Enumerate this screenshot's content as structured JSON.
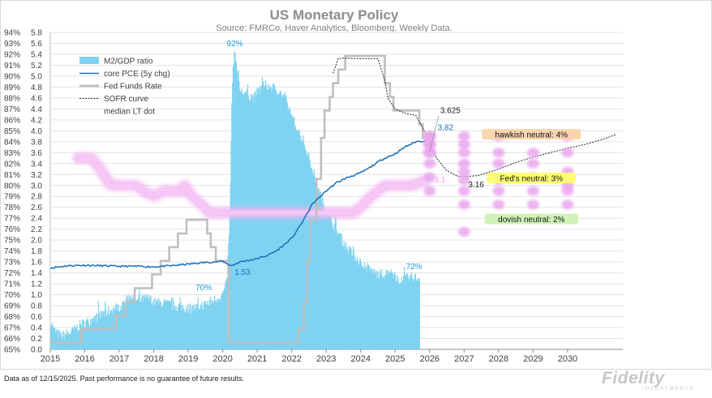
{
  "chart_data": {
    "type": "area",
    "title": "US Monetary Policy",
    "subtitle": "Source: FMRCo, Haver Analytics, Bloomberg. Weekly Data.",
    "left_axis": {
      "ticks": [
        "94%",
        "93%",
        "92%",
        "91%",
        "90%",
        "89%",
        "88%",
        "87%",
        "86%",
        "85%",
        "84%",
        "83%",
        "82%",
        "81%",
        "80%",
        "79%",
        "78%",
        "77%",
        "76%",
        "75%",
        "74%",
        "73%",
        "72%",
        "71%",
        "70%",
        "69%",
        "68%",
        "67%",
        "66%",
        "65%"
      ],
      "range": [
        65,
        94
      ],
      "unit": "%"
    },
    "right_axis": {
      "ticks": [
        "5.8",
        "5.6",
        "5.4",
        "5.2",
        "5.0",
        "4.8",
        "4.6",
        "4.4",
        "4.2",
        "4.0",
        "3.8",
        "3.6",
        "3.4",
        "3.2",
        "3.0",
        "2.8",
        "2.6",
        "2.4",
        "2.2",
        "2.0",
        "1.8",
        "1.6",
        "1.4",
        "1.2",
        "1.0",
        "0.8",
        "0.6",
        "0.4",
        "0.2",
        "0.0"
      ],
      "range": [
        0,
        5.8
      ]
    },
    "x_axis": {
      "ticks": [
        "2015",
        "2016",
        "2017",
        "2018",
        "2019",
        "2020",
        "2021",
        "2022",
        "2023",
        "2024",
        "2025",
        "2026",
        "2027",
        "2028",
        "2029",
        "2030"
      ],
      "range": [
        2015,
        2031.6
      ]
    },
    "legend": {
      "position": "top-left",
      "items": [
        {
          "label": "M2/GDP ratio",
          "color": "#7fd3f0",
          "style": "area"
        },
        {
          "label": "core PCE (5y chg)",
          "color": "#1a6fb8",
          "style": "line"
        },
        {
          "label": "Fed Funds Rate",
          "color": "#bfbfbf",
          "style": "thick-line"
        },
        {
          "label": "SOFR curve",
          "color": "#222222",
          "style": "dotted"
        },
        {
          "label": "median LT dot",
          "color": "#f2b6f2",
          "style": "glow"
        }
      ]
    },
    "series": [
      {
        "name": "M2/GDP ratio",
        "axis": "left",
        "points": [
          [
            2015.0,
            67.6
          ],
          [
            2015.1,
            66.7
          ],
          [
            2015.3,
            66.2
          ],
          [
            2015.6,
            66.6
          ],
          [
            2015.9,
            67.3
          ],
          [
            2016.2,
            67.7
          ],
          [
            2016.5,
            68.2
          ],
          [
            2016.8,
            68.7
          ],
          [
            2017.0,
            68.9
          ],
          [
            2017.2,
            69.6
          ],
          [
            2017.3,
            70.0
          ],
          [
            2017.5,
            69.4
          ],
          [
            2017.8,
            69.7
          ],
          [
            2018.0,
            69.3
          ],
          [
            2018.3,
            69.2
          ],
          [
            2018.6,
            69.0
          ],
          [
            2018.9,
            68.8
          ],
          [
            2019.2,
            68.8
          ],
          [
            2019.5,
            69.1
          ],
          [
            2019.8,
            69.6
          ],
          [
            2020.0,
            70.1
          ],
          [
            2020.1,
            71.0
          ],
          [
            2020.2,
            77.5
          ],
          [
            2020.25,
            88.0
          ],
          [
            2020.3,
            91.5
          ],
          [
            2020.35,
            92.0
          ],
          [
            2020.4,
            90.8
          ],
          [
            2020.5,
            88.6
          ],
          [
            2020.7,
            88.4
          ],
          [
            2020.9,
            88.0
          ],
          [
            2021.0,
            88.6
          ],
          [
            2021.2,
            89.2
          ],
          [
            2021.4,
            89.0
          ],
          [
            2021.6,
            88.7
          ],
          [
            2021.8,
            87.9
          ],
          [
            2022.0,
            86.3
          ],
          [
            2022.2,
            84.9
          ],
          [
            2022.4,
            83.4
          ],
          [
            2022.6,
            81.4
          ],
          [
            2022.8,
            79.3
          ],
          [
            2023.0,
            77.6
          ],
          [
            2023.2,
            76.4
          ],
          [
            2023.4,
            75.3
          ],
          [
            2023.6,
            74.2
          ],
          [
            2023.8,
            73.6
          ],
          [
            2024.0,
            72.9
          ],
          [
            2024.2,
            72.4
          ],
          [
            2024.5,
            71.8
          ],
          [
            2024.8,
            72.0
          ],
          [
            2025.0,
            71.6
          ],
          [
            2025.2,
            71.4
          ],
          [
            2025.5,
            71.6
          ],
          [
            2025.7,
            71.5
          ]
        ],
        "labels": [
          {
            "text": "92%",
            "at": [
              2020.35,
              92.0
            ]
          },
          {
            "text": "70%",
            "at": [
              2019.8,
              70.1
            ]
          },
          {
            "text": "72%",
            "at": [
              2025.5,
              71.6
            ]
          }
        ]
      },
      {
        "name": "core PCE (5y chg)",
        "axis": "right",
        "points": [
          [
            2015.0,
            1.49
          ],
          [
            2015.5,
            1.53
          ],
          [
            2016.0,
            1.54
          ],
          [
            2016.5,
            1.53
          ],
          [
            2017.0,
            1.52
          ],
          [
            2017.5,
            1.52
          ],
          [
            2018.0,
            1.51
          ],
          [
            2018.5,
            1.53
          ],
          [
            2019.0,
            1.56
          ],
          [
            2019.5,
            1.59
          ],
          [
            2020.0,
            1.61
          ],
          [
            2020.25,
            1.53
          ],
          [
            2020.5,
            1.6
          ],
          [
            2021.0,
            1.66
          ],
          [
            2021.3,
            1.72
          ],
          [
            2021.6,
            1.82
          ],
          [
            2022.0,
            2.03
          ],
          [
            2022.3,
            2.32
          ],
          [
            2022.6,
            2.66
          ],
          [
            2023.0,
            2.9
          ],
          [
            2023.3,
            3.05
          ],
          [
            2023.6,
            3.14
          ],
          [
            2024.0,
            3.23
          ],
          [
            2024.3,
            3.34
          ],
          [
            2024.6,
            3.47
          ],
          [
            2025.0,
            3.58
          ],
          [
            2025.3,
            3.71
          ],
          [
            2025.6,
            3.8
          ],
          [
            2025.9,
            3.82
          ]
        ],
        "labels": [
          {
            "text": "1.53",
            "at": [
              2020.25,
              1.53
            ]
          },
          {
            "text": "3.82",
            "at": [
              2025.9,
              3.82
            ]
          }
        ]
      },
      {
        "name": "Fed Funds Rate",
        "axis": "right",
        "points": [
          [
            2015.0,
            0.12
          ],
          [
            2015.9,
            0.12
          ],
          [
            2015.9,
            0.37
          ],
          [
            2016.9,
            0.37
          ],
          [
            2016.9,
            0.62
          ],
          [
            2017.2,
            0.62
          ],
          [
            2017.2,
            0.87
          ],
          [
            2017.45,
            0.87
          ],
          [
            2017.45,
            1.12
          ],
          [
            2017.95,
            1.12
          ],
          [
            2017.95,
            1.37
          ],
          [
            2018.2,
            1.37
          ],
          [
            2018.2,
            1.62
          ],
          [
            2018.45,
            1.62
          ],
          [
            2018.45,
            1.87
          ],
          [
            2018.7,
            1.87
          ],
          [
            2018.7,
            2.12
          ],
          [
            2018.95,
            2.12
          ],
          [
            2018.95,
            2.37
          ],
          [
            2019.55,
            2.37
          ],
          [
            2019.55,
            2.12
          ],
          [
            2019.65,
            2.12
          ],
          [
            2019.65,
            1.87
          ],
          [
            2019.8,
            1.87
          ],
          [
            2019.8,
            1.62
          ],
          [
            2020.17,
            1.62
          ],
          [
            2020.17,
            0.12
          ],
          [
            2022.2,
            0.12
          ],
          [
            2022.2,
            0.37
          ],
          [
            2022.35,
            0.37
          ],
          [
            2022.35,
            0.87
          ],
          [
            2022.45,
            0.87
          ],
          [
            2022.45,
            1.62
          ],
          [
            2022.55,
            1.62
          ],
          [
            2022.55,
            2.37
          ],
          [
            2022.72,
            2.37
          ],
          [
            2022.72,
            3.12
          ],
          [
            2022.85,
            3.12
          ],
          [
            2022.85,
            3.87
          ],
          [
            2022.95,
            3.87
          ],
          [
            2022.95,
            4.37
          ],
          [
            2023.1,
            4.37
          ],
          [
            2023.1,
            4.62
          ],
          [
            2023.2,
            4.62
          ],
          [
            2023.2,
            4.87
          ],
          [
            2023.35,
            4.87
          ],
          [
            2023.35,
            5.12
          ],
          [
            2023.55,
            5.12
          ],
          [
            2023.55,
            5.37
          ],
          [
            2024.7,
            5.37
          ],
          [
            2024.7,
            4.87
          ],
          [
            2024.85,
            4.87
          ],
          [
            2024.85,
            4.62
          ],
          [
            2024.95,
            4.62
          ],
          [
            2024.95,
            4.37
          ],
          [
            2025.7,
            4.37
          ],
          [
            2025.7,
            4.12
          ],
          [
            2025.8,
            4.12
          ],
          [
            2025.8,
            3.87
          ],
          [
            2025.95,
            3.87
          ],
          [
            2025.95,
            3.62
          ],
          [
            2026.0,
            3.62
          ]
        ],
        "labels": [
          {
            "text": "3.625",
            "at": [
              2026.0,
              3.625
            ]
          }
        ]
      },
      {
        "name": "SOFR curve",
        "axis": "right",
        "points": [
          [
            2023.2,
            5.05
          ],
          [
            2023.35,
            5.32
          ],
          [
            2023.5,
            5.33
          ],
          [
            2024.0,
            5.32
          ],
          [
            2024.5,
            5.32
          ],
          [
            2024.7,
            4.92
          ],
          [
            2024.8,
            4.58
          ],
          [
            2025.0,
            4.4
          ],
          [
            2025.3,
            4.32
          ],
          [
            2025.6,
            4.28
          ],
          [
            2025.8,
            4.05
          ],
          [
            2026.0,
            3.78
          ],
          [
            2026.2,
            3.5
          ],
          [
            2026.5,
            3.27
          ],
          [
            2026.8,
            3.17
          ],
          [
            2027.0,
            3.16
          ],
          [
            2027.4,
            3.18
          ],
          [
            2028.0,
            3.3
          ],
          [
            2028.5,
            3.42
          ],
          [
            2029.0,
            3.52
          ],
          [
            2029.5,
            3.6
          ],
          [
            2030.0,
            3.68
          ],
          [
            2030.5,
            3.75
          ],
          [
            2031.0,
            3.84
          ],
          [
            2031.4,
            3.93
          ]
        ],
        "labels": [
          {
            "text": "3.16",
            "at": [
              2027.0,
              3.16
            ]
          }
        ]
      },
      {
        "name": "median LT dot",
        "axis": "right",
        "points": [
          [
            2015.8,
            3.5
          ],
          [
            2016.2,
            3.5
          ],
          [
            2016.5,
            3.25
          ],
          [
            2016.75,
            3.0
          ],
          [
            2017.0,
            3.0
          ],
          [
            2017.5,
            3.0
          ],
          [
            2017.7,
            2.9
          ],
          [
            2018.0,
            2.8
          ],
          [
            2018.3,
            2.9
          ],
          [
            2018.8,
            2.9
          ],
          [
            2018.9,
            3.0
          ],
          [
            2019.1,
            2.8
          ],
          [
            2019.4,
            2.65
          ],
          [
            2019.6,
            2.5
          ],
          [
            2020.0,
            2.5
          ],
          [
            2021.0,
            2.5
          ],
          [
            2022.0,
            2.5
          ],
          [
            2022.5,
            2.5
          ],
          [
            2023.0,
            2.5
          ],
          [
            2023.8,
            2.5
          ],
          [
            2024.0,
            2.6
          ],
          [
            2024.3,
            2.8
          ],
          [
            2024.7,
            3.0
          ],
          [
            2025.0,
            3.0
          ],
          [
            2025.5,
            3.0
          ],
          [
            2025.9,
            3.1
          ]
        ],
        "labels": [
          {
            "text": "3.1",
            "at": [
              2025.9,
              3.1
            ]
          }
        ]
      }
    ],
    "dot_columns": [
      {
        "x": 2026.0,
        "values": [
          3.9,
          3.9,
          3.75,
          3.75,
          3.6,
          3.6,
          3.4,
          3.15,
          2.9
        ]
      },
      {
        "x": 2027.0,
        "values": [
          3.9,
          3.75,
          3.6,
          3.4,
          3.25,
          3.1,
          2.9,
          2.65,
          2.15
        ]
      },
      {
        "x": 2028.0,
        "values": [
          3.9,
          3.6,
          3.4,
          3.1,
          2.9,
          2.65
        ]
      },
      {
        "x": 2029.0,
        "values": [
          3.6,
          3.4,
          3.15,
          2.9,
          2.65
        ]
      },
      {
        "x": 2030.0,
        "values": [
          3.9,
          3.6,
          3.25,
          3.0,
          2.9,
          2.65
        ]
      }
    ],
    "annotations": [
      {
        "text": "hawkish neutral: 4%",
        "at": [
          2028.95,
          3.9
        ],
        "bg": "#f9d2a6"
      },
      {
        "text": "Fed's neutral: 3%",
        "at": [
          2028.95,
          3.1
        ],
        "bg": "#ffff66"
      },
      {
        "text": "dovish neutral: 2%",
        "at": [
          2028.95,
          2.35
        ],
        "bg": "#ccf2b0"
      }
    ]
  },
  "footnote": "Data as of 12/15/2025. Past performance is no guarantee of future results.",
  "logo": "Fidelity",
  "logo_sub": "INVESTMENTS"
}
